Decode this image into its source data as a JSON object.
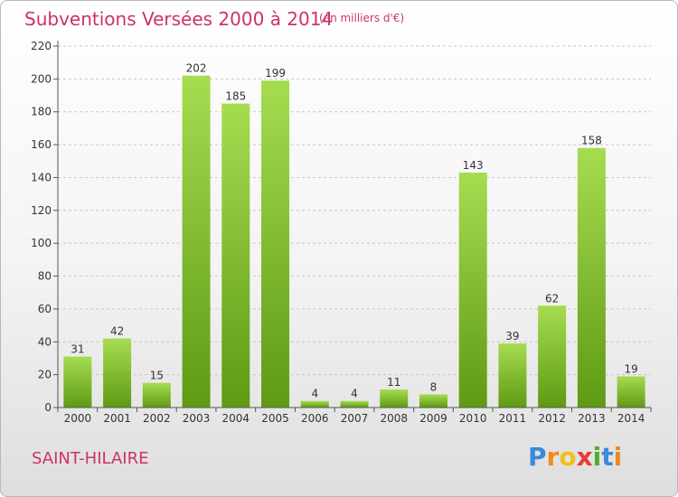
{
  "chart_data": {
    "type": "bar",
    "title": "Subventions Versées 2000 à 2014",
    "subtitle": "(en milliers d'€)",
    "categories": [
      "2000",
      "2001",
      "2002",
      "2003",
      "2004",
      "2005",
      "2006",
      "2007",
      "2008",
      "2009",
      "2010",
      "2011",
      "2012",
      "2013",
      "2014"
    ],
    "values": [
      31,
      42,
      15,
      202,
      185,
      199,
      4,
      4,
      11,
      8,
      143,
      39,
      62,
      158,
      19
    ],
    "ylim": [
      0,
      220
    ],
    "yticks": [
      0,
      20,
      40,
      60,
      80,
      100,
      120,
      140,
      160,
      180,
      200,
      220
    ],
    "grid": true,
    "legend": "none",
    "colors": {
      "bar_top": "#a6dc50",
      "bar_bottom": "#5e9a14",
      "text": "#cc3366"
    }
  },
  "location": "SAINT-HILAIRE",
  "logo": {
    "letters": [
      {
        "ch": "P",
        "color": "#3a8ad8"
      },
      {
        "ch": "r",
        "color": "#f08a1a"
      },
      {
        "ch": "o",
        "color": "#f0c01a"
      },
      {
        "ch": "x",
        "color": "#e83a3a"
      },
      {
        "ch": "i",
        "color": "#4caf30"
      },
      {
        "ch": "t",
        "color": "#3a8ad8"
      },
      {
        "ch": "i",
        "color": "#f08a1a"
      }
    ]
  }
}
